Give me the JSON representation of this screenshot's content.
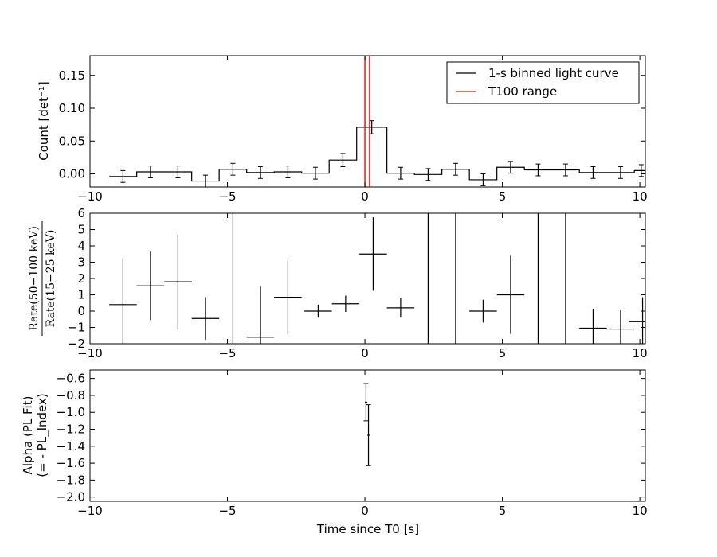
{
  "chart_data": [
    {
      "panel": "light-curve",
      "type": "line",
      "ylabel": "Count [det⁻¹]",
      "xlim": [
        -10,
        10.2
      ],
      "ylim": [
        -0.02,
        0.18
      ],
      "xticks": [
        -10,
        -5,
        0,
        5,
        10
      ],
      "xtick_labels": [
        "−10",
        "−5",
        "0",
        "5",
        "10"
      ],
      "yticks": [
        0.0,
        0.05,
        0.1,
        0.15
      ],
      "ytick_labels": [
        "0.00",
        "0.05",
        "0.10",
        "0.15"
      ],
      "legend": {
        "placement": "top-right",
        "entries": [
          {
            "label": "1-s binned light curve",
            "color": "#000000"
          },
          {
            "label": "T100 range",
            "color": "#ff0000"
          }
        ]
      },
      "series": [
        {
          "name": "1-s binned light curve",
          "color": "#000000",
          "bins": [
            [
              -9.3,
              -8.3,
              -0.004,
              0.009
            ],
            [
              -8.3,
              -7.3,
              0.003,
              0.009
            ],
            [
              -7.3,
              -6.3,
              0.003,
              0.009
            ],
            [
              -6.3,
              -5.3,
              -0.011,
              0.009
            ],
            [
              -5.3,
              -4.3,
              0.007,
              0.009
            ],
            [
              -4.3,
              -3.3,
              0.002,
              0.009
            ],
            [
              -3.3,
              -2.3,
              0.003,
              0.009
            ],
            [
              -2.3,
              -1.3,
              0.001,
              0.009
            ],
            [
              -1.3,
              -0.3,
              0.021,
              0.01
            ],
            [
              -0.3,
              0.8,
              0.071,
              0.01
            ],
            [
              0.8,
              1.8,
              0.001,
              0.009
            ],
            [
              1.8,
              2.8,
              -0.001,
              0.009
            ],
            [
              2.8,
              3.8,
              0.007,
              0.009
            ],
            [
              3.8,
              4.8,
              -0.009,
              0.009
            ],
            [
              4.8,
              5.8,
              0.01,
              0.009
            ],
            [
              5.8,
              6.8,
              0.006,
              0.009
            ],
            [
              6.8,
              7.8,
              0.006,
              0.009
            ],
            [
              7.8,
              8.8,
              0.002,
              0.009
            ],
            [
              8.8,
              9.8,
              0.002,
              0.009
            ],
            [
              9.8,
              10.3,
              0.005,
              0.009
            ]
          ]
        }
      ],
      "t100_range": {
        "color": "#ff0000",
        "x": [
          0.0,
          0.17
        ]
      }
    },
    {
      "panel": "hardness-ratio",
      "type": "scatter",
      "ylabel": "Rate(50−100 keV) / Rate(15−25 keV)",
      "ylabel_numerator": "Rate(50−100 keV)",
      "ylabel_denominator": "Rate(15−25 keV)",
      "xlim": [
        -10,
        10.2
      ],
      "ylim": [
        -2,
        6
      ],
      "xticks": [
        -10,
        -5,
        0,
        5,
        10
      ],
      "xtick_labels": [
        "−10",
        "−5",
        "0",
        "5",
        "10"
      ],
      "yticks": [
        -2,
        -1,
        0,
        1,
        2,
        3,
        4,
        5,
        6
      ],
      "ytick_labels": [
        "−2",
        "−1",
        "0",
        "1",
        "2",
        "3",
        "4",
        "5",
        "6"
      ],
      "points": [
        {
          "x": -8.8,
          "xerr": 0.5,
          "y": 0.4,
          "yerr": 2.8
        },
        {
          "x": -7.8,
          "xerr": 0.5,
          "y": 1.55,
          "yerr": 2.1
        },
        {
          "x": -6.8,
          "xerr": 0.5,
          "y": 1.8,
          "yerr": 2.9
        },
        {
          "x": -5.8,
          "xerr": 0.5,
          "y": -0.45,
          "yerr": 1.3
        },
        {
          "x": -3.8,
          "xerr": 0.5,
          "y": -1.6,
          "yerr": 3.1
        },
        {
          "x": -2.8,
          "xerr": 0.5,
          "y": 0.85,
          "yerr": 2.25
        },
        {
          "x": -1.7,
          "xerr": 0.5,
          "y": 0.0,
          "yerr": 0.4
        },
        {
          "x": -0.7,
          "xerr": 0.5,
          "y": 0.45,
          "yerr": 0.5
        },
        {
          "x": 0.3,
          "xerr": 0.5,
          "y": 3.5,
          "yerr": 2.25
        },
        {
          "x": 1.3,
          "xerr": 0.5,
          "y": 0.2,
          "yerr": 0.6
        },
        {
          "x": 4.3,
          "xerr": 0.5,
          "y": 0.0,
          "yerr": 0.7
        },
        {
          "x": 5.3,
          "xerr": 0.5,
          "y": 1.0,
          "yerr": 2.4
        },
        {
          "x": 8.3,
          "xerr": 0.5,
          "y": -1.05,
          "yerr": 1.2
        },
        {
          "x": 9.3,
          "xerr": 0.5,
          "y": -1.1,
          "yerr": 1.2
        },
        {
          "x": 10.1,
          "xerr": 0.5,
          "y": -0.65,
          "yerr": 1.5
        }
      ],
      "unbounded_bins": [
        -4.8,
        2.3,
        3.3,
        6.3,
        7.3
      ]
    },
    {
      "panel": "alpha",
      "type": "scatter",
      "ylabel": "Alpha (PL Fit)",
      "ylabel_line2": "(= - PL_Index)",
      "xlabel": "Time since T0 [s]",
      "xlim": [
        -10,
        10.2
      ],
      "ylim": [
        -2.05,
        -0.5
      ],
      "xticks": [
        -10,
        -5,
        0,
        5,
        10
      ],
      "xtick_labels": [
        "−10",
        "−5",
        "0",
        "5",
        "10"
      ],
      "yticks": [
        -2.0,
        -1.8,
        -1.6,
        -1.4,
        -1.2,
        -1.0,
        -0.8,
        -0.6
      ],
      "ytick_labels": [
        "−2.0",
        "−1.8",
        "−1.6",
        "−1.4",
        "−1.2",
        "−1.0",
        "−0.8",
        "−0.6"
      ],
      "points": [
        {
          "x": 0.04,
          "xerr": 0.04,
          "y": -0.88,
          "yerr": 0.22
        },
        {
          "x": 0.13,
          "xerr": 0.04,
          "y": -1.27,
          "yerr": 0.36
        }
      ]
    }
  ]
}
